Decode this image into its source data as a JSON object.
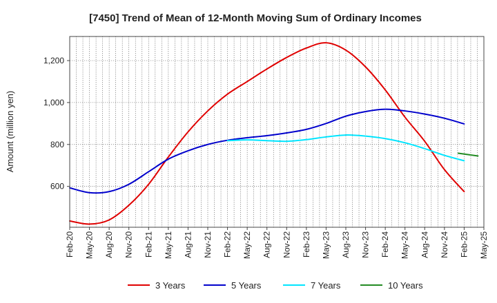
{
  "chart_data": {
    "type": "line",
    "title": "[7450]  Trend of Mean of 12-Month Moving Sum of Ordinary Incomes",
    "xlabel": "",
    "ylabel": "Amount (million yen)",
    "x_ticks": [
      "Feb-20",
      "May-20",
      "Aug-20",
      "Nov-20",
      "Feb-21",
      "May-21",
      "Aug-21",
      "Nov-21",
      "Feb-22",
      "May-22",
      "Aug-22",
      "Nov-22",
      "Feb-23",
      "May-23",
      "Aug-23",
      "Nov-23",
      "Feb-24",
      "May-24",
      "Aug-24",
      "Nov-24",
      "Feb-25",
      "May-25"
    ],
    "y_ticks": [
      600,
      800,
      1000,
      1200
    ],
    "y_tick_labels": [
      "600",
      "800",
      "1,000",
      "1,200"
    ],
    "ylim": [
      405,
      1315
    ],
    "grid": true,
    "legend_position": "bottom",
    "series": [
      {
        "name": "3 Years",
        "color": "#e00000",
        "x_start_index": 0,
        "values": [
          435,
          420,
          440,
          510,
          610,
          740,
          860,
          960,
          1040,
          1100,
          1160,
          1215,
          1260,
          1285,
          1250,
          1170,
          1060,
          930,
          815,
          680,
          575
        ]
      },
      {
        "name": "5 Years",
        "color": "#0000cc",
        "x_start_index": 0,
        "values": [
          593,
          570,
          575,
          610,
          670,
          730,
          770,
          800,
          820,
          832,
          842,
          855,
          872,
          900,
          935,
          957,
          968,
          960,
          945,
          925,
          898
        ]
      },
      {
        "name": "7 Years",
        "color": "#00e5ff",
        "x_start_index": 8,
        "values": [
          818,
          822,
          818,
          815,
          823,
          836,
          845,
          840,
          828,
          808,
          780,
          748,
          722
        ]
      },
      {
        "name": "10 Years",
        "color": "#228b22",
        "x_start_index": 19.7,
        "values": [
          758,
          745
        ]
      }
    ]
  }
}
